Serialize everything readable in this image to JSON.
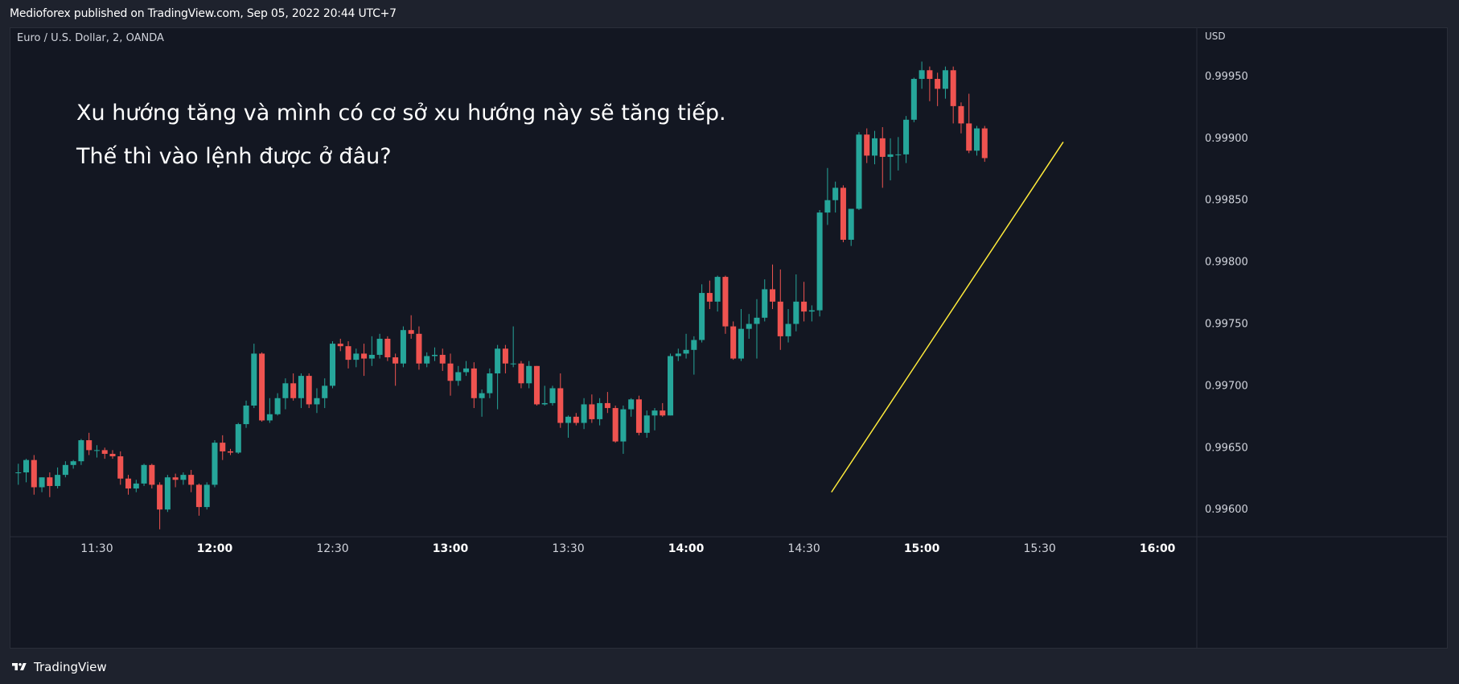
{
  "header": {
    "published_text": "Medioforex published on TradingView.com, Sep 05, 2022 20:44 UTC+7"
  },
  "footer": {
    "brand": "TradingView"
  },
  "colors": {
    "background": "#131722",
    "frame": "#1e222d",
    "up": "#26a69a",
    "down": "#ef5350",
    "trendline": "#ffeb3b",
    "text": "#d1d4dc"
  },
  "chart_data": {
    "type": "candlestick",
    "symbol_label": "Euro / U.S. Dollar, 2, OANDA",
    "currency_label": "USD",
    "interval_minutes": 2,
    "annotations": [
      "Xu hướng tăng và mình có cơ sở xu hướng này sẽ tăng tiếp.",
      "Thế thì vào lệnh được ở đâu?"
    ],
    "y_ticks": [
      "0.99950",
      "0.99900",
      "0.99850",
      "0.99800",
      "0.99750",
      "0.99700",
      "0.99650",
      "0.99600"
    ],
    "y_tick_values": [
      0.9995,
      0.999,
      0.9985,
      0.998,
      0.9975,
      0.997,
      0.9965,
      0.996
    ],
    "x_ticks": [
      {
        "label": "11:30",
        "time": "11:30",
        "bold": false
      },
      {
        "label": "12:00",
        "time": "12:00",
        "bold": true
      },
      {
        "label": "12:30",
        "time": "12:30",
        "bold": false
      },
      {
        "label": "13:00",
        "time": "13:00",
        "bold": true
      },
      {
        "label": "13:30",
        "time": "13:30",
        "bold": false
      },
      {
        "label": "14:00",
        "time": "14:00",
        "bold": true
      },
      {
        "label": "14:30",
        "time": "14:30",
        "bold": false
      },
      {
        "label": "15:00",
        "time": "15:00",
        "bold": true
      },
      {
        "label": "15:30",
        "time": "15:30",
        "bold": false
      },
      {
        "label": "16:00",
        "time": "16:00",
        "bold": true
      }
    ],
    "time_range": [
      "11:08",
      "16:10"
    ],
    "price_range": [
      0.99578,
      0.99989
    ],
    "candles": [
      {
        "t": "11:10",
        "o": 0.9963,
        "h": 0.99637,
        "l": 0.9962,
        "c": 0.9963
      },
      {
        "t": "11:12",
        "o": 0.9963,
        "h": 0.99641,
        "l": 0.99622,
        "c": 0.9964
      },
      {
        "t": "11:14",
        "o": 0.9964,
        "h": 0.99644,
        "l": 0.99612,
        "c": 0.99618
      },
      {
        "t": "11:16",
        "o": 0.99618,
        "h": 0.99626,
        "l": 0.99614,
        "c": 0.99626
      },
      {
        "t": "11:18",
        "o": 0.99626,
        "h": 0.9963,
        "l": 0.9961,
        "c": 0.99619
      },
      {
        "t": "11:20",
        "o": 0.99619,
        "h": 0.99634,
        "l": 0.99617,
        "c": 0.99628
      },
      {
        "t": "11:22",
        "o": 0.99628,
        "h": 0.99639,
        "l": 0.99626,
        "c": 0.99636
      },
      {
        "t": "11:24",
        "o": 0.99636,
        "h": 0.9964,
        "l": 0.99633,
        "c": 0.99639
      },
      {
        "t": "11:26",
        "o": 0.99639,
        "h": 0.99657,
        "l": 0.99636,
        "c": 0.99656
      },
      {
        "t": "11:28",
        "o": 0.99656,
        "h": 0.99662,
        "l": 0.99644,
        "c": 0.99648
      },
      {
        "t": "11:30",
        "o": 0.99648,
        "h": 0.99652,
        "l": 0.99642,
        "c": 0.99648
      },
      {
        "t": "11:32",
        "o": 0.99648,
        "h": 0.9965,
        "l": 0.99641,
        "c": 0.99645
      },
      {
        "t": "11:34",
        "o": 0.99645,
        "h": 0.99648,
        "l": 0.99641,
        "c": 0.99643
      },
      {
        "t": "11:36",
        "o": 0.99643,
        "h": 0.99647,
        "l": 0.9962,
        "c": 0.99625
      },
      {
        "t": "11:38",
        "o": 0.99625,
        "h": 0.99628,
        "l": 0.99612,
        "c": 0.99617
      },
      {
        "t": "11:40",
        "o": 0.99617,
        "h": 0.99624,
        "l": 0.99614,
        "c": 0.99621
      },
      {
        "t": "11:42",
        "o": 0.99621,
        "h": 0.99637,
        "l": 0.99619,
        "c": 0.99636
      },
      {
        "t": "11:44",
        "o": 0.99636,
        "h": 0.99637,
        "l": 0.99617,
        "c": 0.9962
      },
      {
        "t": "11:46",
        "o": 0.9962,
        "h": 0.99622,
        "l": 0.99584,
        "c": 0.996
      },
      {
        "t": "11:48",
        "o": 0.996,
        "h": 0.99628,
        "l": 0.99598,
        "c": 0.99626
      },
      {
        "t": "11:50",
        "o": 0.99626,
        "h": 0.99629,
        "l": 0.99618,
        "c": 0.99624
      },
      {
        "t": "11:52",
        "o": 0.99624,
        "h": 0.9963,
        "l": 0.9962,
        "c": 0.99628
      },
      {
        "t": "11:54",
        "o": 0.99628,
        "h": 0.99632,
        "l": 0.99614,
        "c": 0.9962
      },
      {
        "t": "11:56",
        "o": 0.9962,
        "h": 0.99621,
        "l": 0.99595,
        "c": 0.99602
      },
      {
        "t": "11:58",
        "o": 0.99602,
        "h": 0.99622,
        "l": 0.996,
        "c": 0.9962
      },
      {
        "t": "12:00",
        "o": 0.9962,
        "h": 0.99656,
        "l": 0.99618,
        "c": 0.99654
      },
      {
        "t": "12:02",
        "o": 0.99654,
        "h": 0.9966,
        "l": 0.9964,
        "c": 0.99647
      },
      {
        "t": "12:04",
        "o": 0.99647,
        "h": 0.99649,
        "l": 0.99644,
        "c": 0.99646
      },
      {
        "t": "12:06",
        "o": 0.99646,
        "h": 0.9967,
        "l": 0.99645,
        "c": 0.99669
      },
      {
        "t": "12:08",
        "o": 0.99669,
        "h": 0.99688,
        "l": 0.99666,
        "c": 0.99684
      },
      {
        "t": "12:10",
        "o": 0.99684,
        "h": 0.99734,
        "l": 0.99682,
        "c": 0.99726
      },
      {
        "t": "12:12",
        "o": 0.99726,
        "h": 0.99727,
        "l": 0.99671,
        "c": 0.99672
      },
      {
        "t": "12:14",
        "o": 0.99672,
        "h": 0.9969,
        "l": 0.9967,
        "c": 0.99677
      },
      {
        "t": "12:16",
        "o": 0.99677,
        "h": 0.99694,
        "l": 0.99676,
        "c": 0.9969
      },
      {
        "t": "12:18",
        "o": 0.9969,
        "h": 0.99706,
        "l": 0.99681,
        "c": 0.99702
      },
      {
        "t": "12:20",
        "o": 0.99702,
        "h": 0.9971,
        "l": 0.99688,
        "c": 0.9969
      },
      {
        "t": "12:22",
        "o": 0.9969,
        "h": 0.9971,
        "l": 0.99682,
        "c": 0.99708
      },
      {
        "t": "12:24",
        "o": 0.99708,
        "h": 0.9971,
        "l": 0.99682,
        "c": 0.99685
      },
      {
        "t": "12:26",
        "o": 0.99685,
        "h": 0.99698,
        "l": 0.99678,
        "c": 0.9969
      },
      {
        "t": "12:28",
        "o": 0.9969,
        "h": 0.99706,
        "l": 0.99682,
        "c": 0.997
      },
      {
        "t": "12:30",
        "o": 0.997,
        "h": 0.99736,
        "l": 0.99698,
        "c": 0.99734
      },
      {
        "t": "12:32",
        "o": 0.99734,
        "h": 0.99738,
        "l": 0.99728,
        "c": 0.99732
      },
      {
        "t": "12:34",
        "o": 0.99732,
        "h": 0.99736,
        "l": 0.99714,
        "c": 0.99721
      },
      {
        "t": "12:36",
        "o": 0.99721,
        "h": 0.9973,
        "l": 0.99715,
        "c": 0.99726
      },
      {
        "t": "12:38",
        "o": 0.99726,
        "h": 0.99734,
        "l": 0.99708,
        "c": 0.99722
      },
      {
        "t": "12:40",
        "o": 0.99722,
        "h": 0.9974,
        "l": 0.99716,
        "c": 0.99725
      },
      {
        "t": "12:42",
        "o": 0.99725,
        "h": 0.99742,
        "l": 0.99722,
        "c": 0.99738
      },
      {
        "t": "12:44",
        "o": 0.99738,
        "h": 0.9974,
        "l": 0.9972,
        "c": 0.99723
      },
      {
        "t": "12:46",
        "o": 0.99723,
        "h": 0.99726,
        "l": 0.997,
        "c": 0.99718
      },
      {
        "t": "12:48",
        "o": 0.99718,
        "h": 0.99748,
        "l": 0.99715,
        "c": 0.99745
      },
      {
        "t": "12:50",
        "o": 0.99745,
        "h": 0.99757,
        "l": 0.99738,
        "c": 0.99742
      },
      {
        "t": "12:52",
        "o": 0.99742,
        "h": 0.99748,
        "l": 0.99713,
        "c": 0.99718
      },
      {
        "t": "12:54",
        "o": 0.99718,
        "h": 0.99727,
        "l": 0.99715,
        "c": 0.99724
      },
      {
        "t": "12:56",
        "o": 0.99724,
        "h": 0.99731,
        "l": 0.9972,
        "c": 0.99725
      },
      {
        "t": "12:58",
        "o": 0.99725,
        "h": 0.9973,
        "l": 0.99712,
        "c": 0.99718
      },
      {
        "t": "13:00",
        "o": 0.99718,
        "h": 0.99726,
        "l": 0.99692,
        "c": 0.99704
      },
      {
        "t": "13:02",
        "o": 0.99704,
        "h": 0.99716,
        "l": 0.997,
        "c": 0.99711
      },
      {
        "t": "13:04",
        "o": 0.99711,
        "h": 0.9972,
        "l": 0.99708,
        "c": 0.99714
      },
      {
        "t": "13:06",
        "o": 0.99714,
        "h": 0.99719,
        "l": 0.99682,
        "c": 0.9969
      },
      {
        "t": "13:08",
        "o": 0.9969,
        "h": 0.99697,
        "l": 0.99675,
        "c": 0.99694
      },
      {
        "t": "13:10",
        "o": 0.99694,
        "h": 0.99714,
        "l": 0.9969,
        "c": 0.9971
      },
      {
        "t": "13:12",
        "o": 0.9971,
        "h": 0.99733,
        "l": 0.99681,
        "c": 0.9973
      },
      {
        "t": "13:14",
        "o": 0.9973,
        "h": 0.99733,
        "l": 0.9971,
        "c": 0.99718
      },
      {
        "t": "13:16",
        "o": 0.99718,
        "h": 0.99748,
        "l": 0.99715,
        "c": 0.99718
      },
      {
        "t": "13:18",
        "o": 0.99718,
        "h": 0.9972,
        "l": 0.99698,
        "c": 0.99702
      },
      {
        "t": "13:20",
        "o": 0.99702,
        "h": 0.9972,
        "l": 0.99698,
        "c": 0.99716
      },
      {
        "t": "13:22",
        "o": 0.99716,
        "h": 0.99716,
        "l": 0.99684,
        "c": 0.99685
      },
      {
        "t": "13:24",
        "o": 0.99685,
        "h": 0.997,
        "l": 0.99684,
        "c": 0.99686
      },
      {
        "t": "13:26",
        "o": 0.99686,
        "h": 0.997,
        "l": 0.99684,
        "c": 0.99698
      },
      {
        "t": "13:28",
        "o": 0.99698,
        "h": 0.9971,
        "l": 0.99666,
        "c": 0.9967
      },
      {
        "t": "13:30",
        "o": 0.9967,
        "h": 0.99676,
        "l": 0.99658,
        "c": 0.99675
      },
      {
        "t": "13:32",
        "o": 0.99675,
        "h": 0.99678,
        "l": 0.99668,
        "c": 0.9967
      },
      {
        "t": "13:34",
        "o": 0.9967,
        "h": 0.9969,
        "l": 0.99665,
        "c": 0.99685
      },
      {
        "t": "13:36",
        "o": 0.99685,
        "h": 0.99693,
        "l": 0.9967,
        "c": 0.99673
      },
      {
        "t": "13:38",
        "o": 0.99673,
        "h": 0.9969,
        "l": 0.99668,
        "c": 0.99686
      },
      {
        "t": "13:40",
        "o": 0.99686,
        "h": 0.99695,
        "l": 0.99678,
        "c": 0.99682
      },
      {
        "t": "13:42",
        "o": 0.99682,
        "h": 0.99684,
        "l": 0.99654,
        "c": 0.99655
      },
      {
        "t": "13:44",
        "o": 0.99655,
        "h": 0.99684,
        "l": 0.99645,
        "c": 0.99681
      },
      {
        "t": "13:46",
        "o": 0.99681,
        "h": 0.9969,
        "l": 0.99675,
        "c": 0.99689
      },
      {
        "t": "13:48",
        "o": 0.99689,
        "h": 0.99692,
        "l": 0.9966,
        "c": 0.99662
      },
      {
        "t": "13:50",
        "o": 0.99662,
        "h": 0.9968,
        "l": 0.99658,
        "c": 0.99676
      },
      {
        "t": "13:52",
        "o": 0.99676,
        "h": 0.99682,
        "l": 0.99664,
        "c": 0.9968
      },
      {
        "t": "13:54",
        "o": 0.9968,
        "h": 0.99686,
        "l": 0.99675,
        "c": 0.99676
      },
      {
        "t": "13:56",
        "o": 0.99676,
        "h": 0.99726,
        "l": 0.99676,
        "c": 0.99724
      },
      {
        "t": "13:58",
        "o": 0.99724,
        "h": 0.9973,
        "l": 0.9972,
        "c": 0.99726
      },
      {
        "t": "14:00",
        "o": 0.99726,
        "h": 0.99742,
        "l": 0.99722,
        "c": 0.99729
      },
      {
        "t": "14:02",
        "o": 0.99729,
        "h": 0.9974,
        "l": 0.99709,
        "c": 0.99737
      },
      {
        "t": "14:04",
        "o": 0.99737,
        "h": 0.99782,
        "l": 0.99735,
        "c": 0.99775
      },
      {
        "t": "14:06",
        "o": 0.99775,
        "h": 0.99785,
        "l": 0.99762,
        "c": 0.99768
      },
      {
        "t": "14:08",
        "o": 0.99768,
        "h": 0.99789,
        "l": 0.9976,
        "c": 0.99788
      },
      {
        "t": "14:10",
        "o": 0.99788,
        "h": 0.99789,
        "l": 0.99742,
        "c": 0.99748
      },
      {
        "t": "14:12",
        "o": 0.99748,
        "h": 0.99752,
        "l": 0.99721,
        "c": 0.99722
      },
      {
        "t": "14:14",
        "o": 0.99722,
        "h": 0.99762,
        "l": 0.9972,
        "c": 0.99746
      },
      {
        "t": "14:16",
        "o": 0.99746,
        "h": 0.99758,
        "l": 0.99738,
        "c": 0.9975
      },
      {
        "t": "14:18",
        "o": 0.9975,
        "h": 0.9977,
        "l": 0.99722,
        "c": 0.99755
      },
      {
        "t": "14:20",
        "o": 0.99755,
        "h": 0.99786,
        "l": 0.99752,
        "c": 0.99778
      },
      {
        "t": "14:22",
        "o": 0.99778,
        "h": 0.99798,
        "l": 0.99762,
        "c": 0.99768
      },
      {
        "t": "14:24",
        "o": 0.99768,
        "h": 0.99794,
        "l": 0.99729,
        "c": 0.9974
      },
      {
        "t": "14:26",
        "o": 0.9974,
        "h": 0.99762,
        "l": 0.99735,
        "c": 0.9975
      },
      {
        "t": "14:28",
        "o": 0.9975,
        "h": 0.9979,
        "l": 0.99744,
        "c": 0.99768
      },
      {
        "t": "14:30",
        "o": 0.99768,
        "h": 0.99784,
        "l": 0.99752,
        "c": 0.9976
      },
      {
        "t": "14:32",
        "o": 0.9976,
        "h": 0.99765,
        "l": 0.99752,
        "c": 0.99761
      },
      {
        "t": "14:34",
        "o": 0.99761,
        "h": 0.99842,
        "l": 0.99756,
        "c": 0.9984
      },
      {
        "t": "14:36",
        "o": 0.9984,
        "h": 0.99876,
        "l": 0.9983,
        "c": 0.9985
      },
      {
        "t": "14:38",
        "o": 0.9985,
        "h": 0.99865,
        "l": 0.9984,
        "c": 0.9986
      },
      {
        "t": "14:40",
        "o": 0.9986,
        "h": 0.99862,
        "l": 0.99816,
        "c": 0.99818
      },
      {
        "t": "14:42",
        "o": 0.99818,
        "h": 0.99843,
        "l": 0.99813,
        "c": 0.99843
      },
      {
        "t": "14:44",
        "o": 0.99843,
        "h": 0.99905,
        "l": 0.99842,
        "c": 0.99903
      },
      {
        "t": "14:46",
        "o": 0.99903,
        "h": 0.99908,
        "l": 0.9988,
        "c": 0.99886
      },
      {
        "t": "14:48",
        "o": 0.99886,
        "h": 0.99906,
        "l": 0.99879,
        "c": 0.999
      },
      {
        "t": "14:50",
        "o": 0.999,
        "h": 0.99909,
        "l": 0.9986,
        "c": 0.99885
      },
      {
        "t": "14:52",
        "o": 0.99885,
        "h": 0.999,
        "l": 0.99866,
        "c": 0.99887
      },
      {
        "t": "14:54",
        "o": 0.99887,
        "h": 0.99901,
        "l": 0.99874,
        "c": 0.99887
      },
      {
        "t": "14:56",
        "o": 0.99887,
        "h": 0.99918,
        "l": 0.9988,
        "c": 0.99915
      },
      {
        "t": "14:58",
        "o": 0.99915,
        "h": 0.99949,
        "l": 0.99913,
        "c": 0.99948
      },
      {
        "t": "15:00",
        "o": 0.99948,
        "h": 0.99962,
        "l": 0.9994,
        "c": 0.99955
      },
      {
        "t": "15:02",
        "o": 0.99955,
        "h": 0.99958,
        "l": 0.9993,
        "c": 0.99948
      },
      {
        "t": "15:04",
        "o": 0.99948,
        "h": 0.99953,
        "l": 0.99926,
        "c": 0.9994
      },
      {
        "t": "15:06",
        "o": 0.9994,
        "h": 0.99958,
        "l": 0.99932,
        "c": 0.99955
      },
      {
        "t": "15:08",
        "o": 0.99955,
        "h": 0.99958,
        "l": 0.99912,
        "c": 0.99926
      },
      {
        "t": "15:10",
        "o": 0.99926,
        "h": 0.99929,
        "l": 0.99904,
        "c": 0.99912
      },
      {
        "t": "15:12",
        "o": 0.99912,
        "h": 0.99936,
        "l": 0.99888,
        "c": 0.9989
      },
      {
        "t": "15:14",
        "o": 0.9989,
        "h": 0.9991,
        "l": 0.99886,
        "c": 0.99908
      },
      {
        "t": "15:16",
        "o": 0.99908,
        "h": 0.9991,
        "l": 0.99881,
        "c": 0.99884
      }
    ],
    "trendline": {
      "start": {
        "t": "14:37",
        "price": 0.99614
      },
      "end": {
        "t": "15:36",
        "price": 0.99897
      },
      "color": "#ffeb3b"
    }
  }
}
